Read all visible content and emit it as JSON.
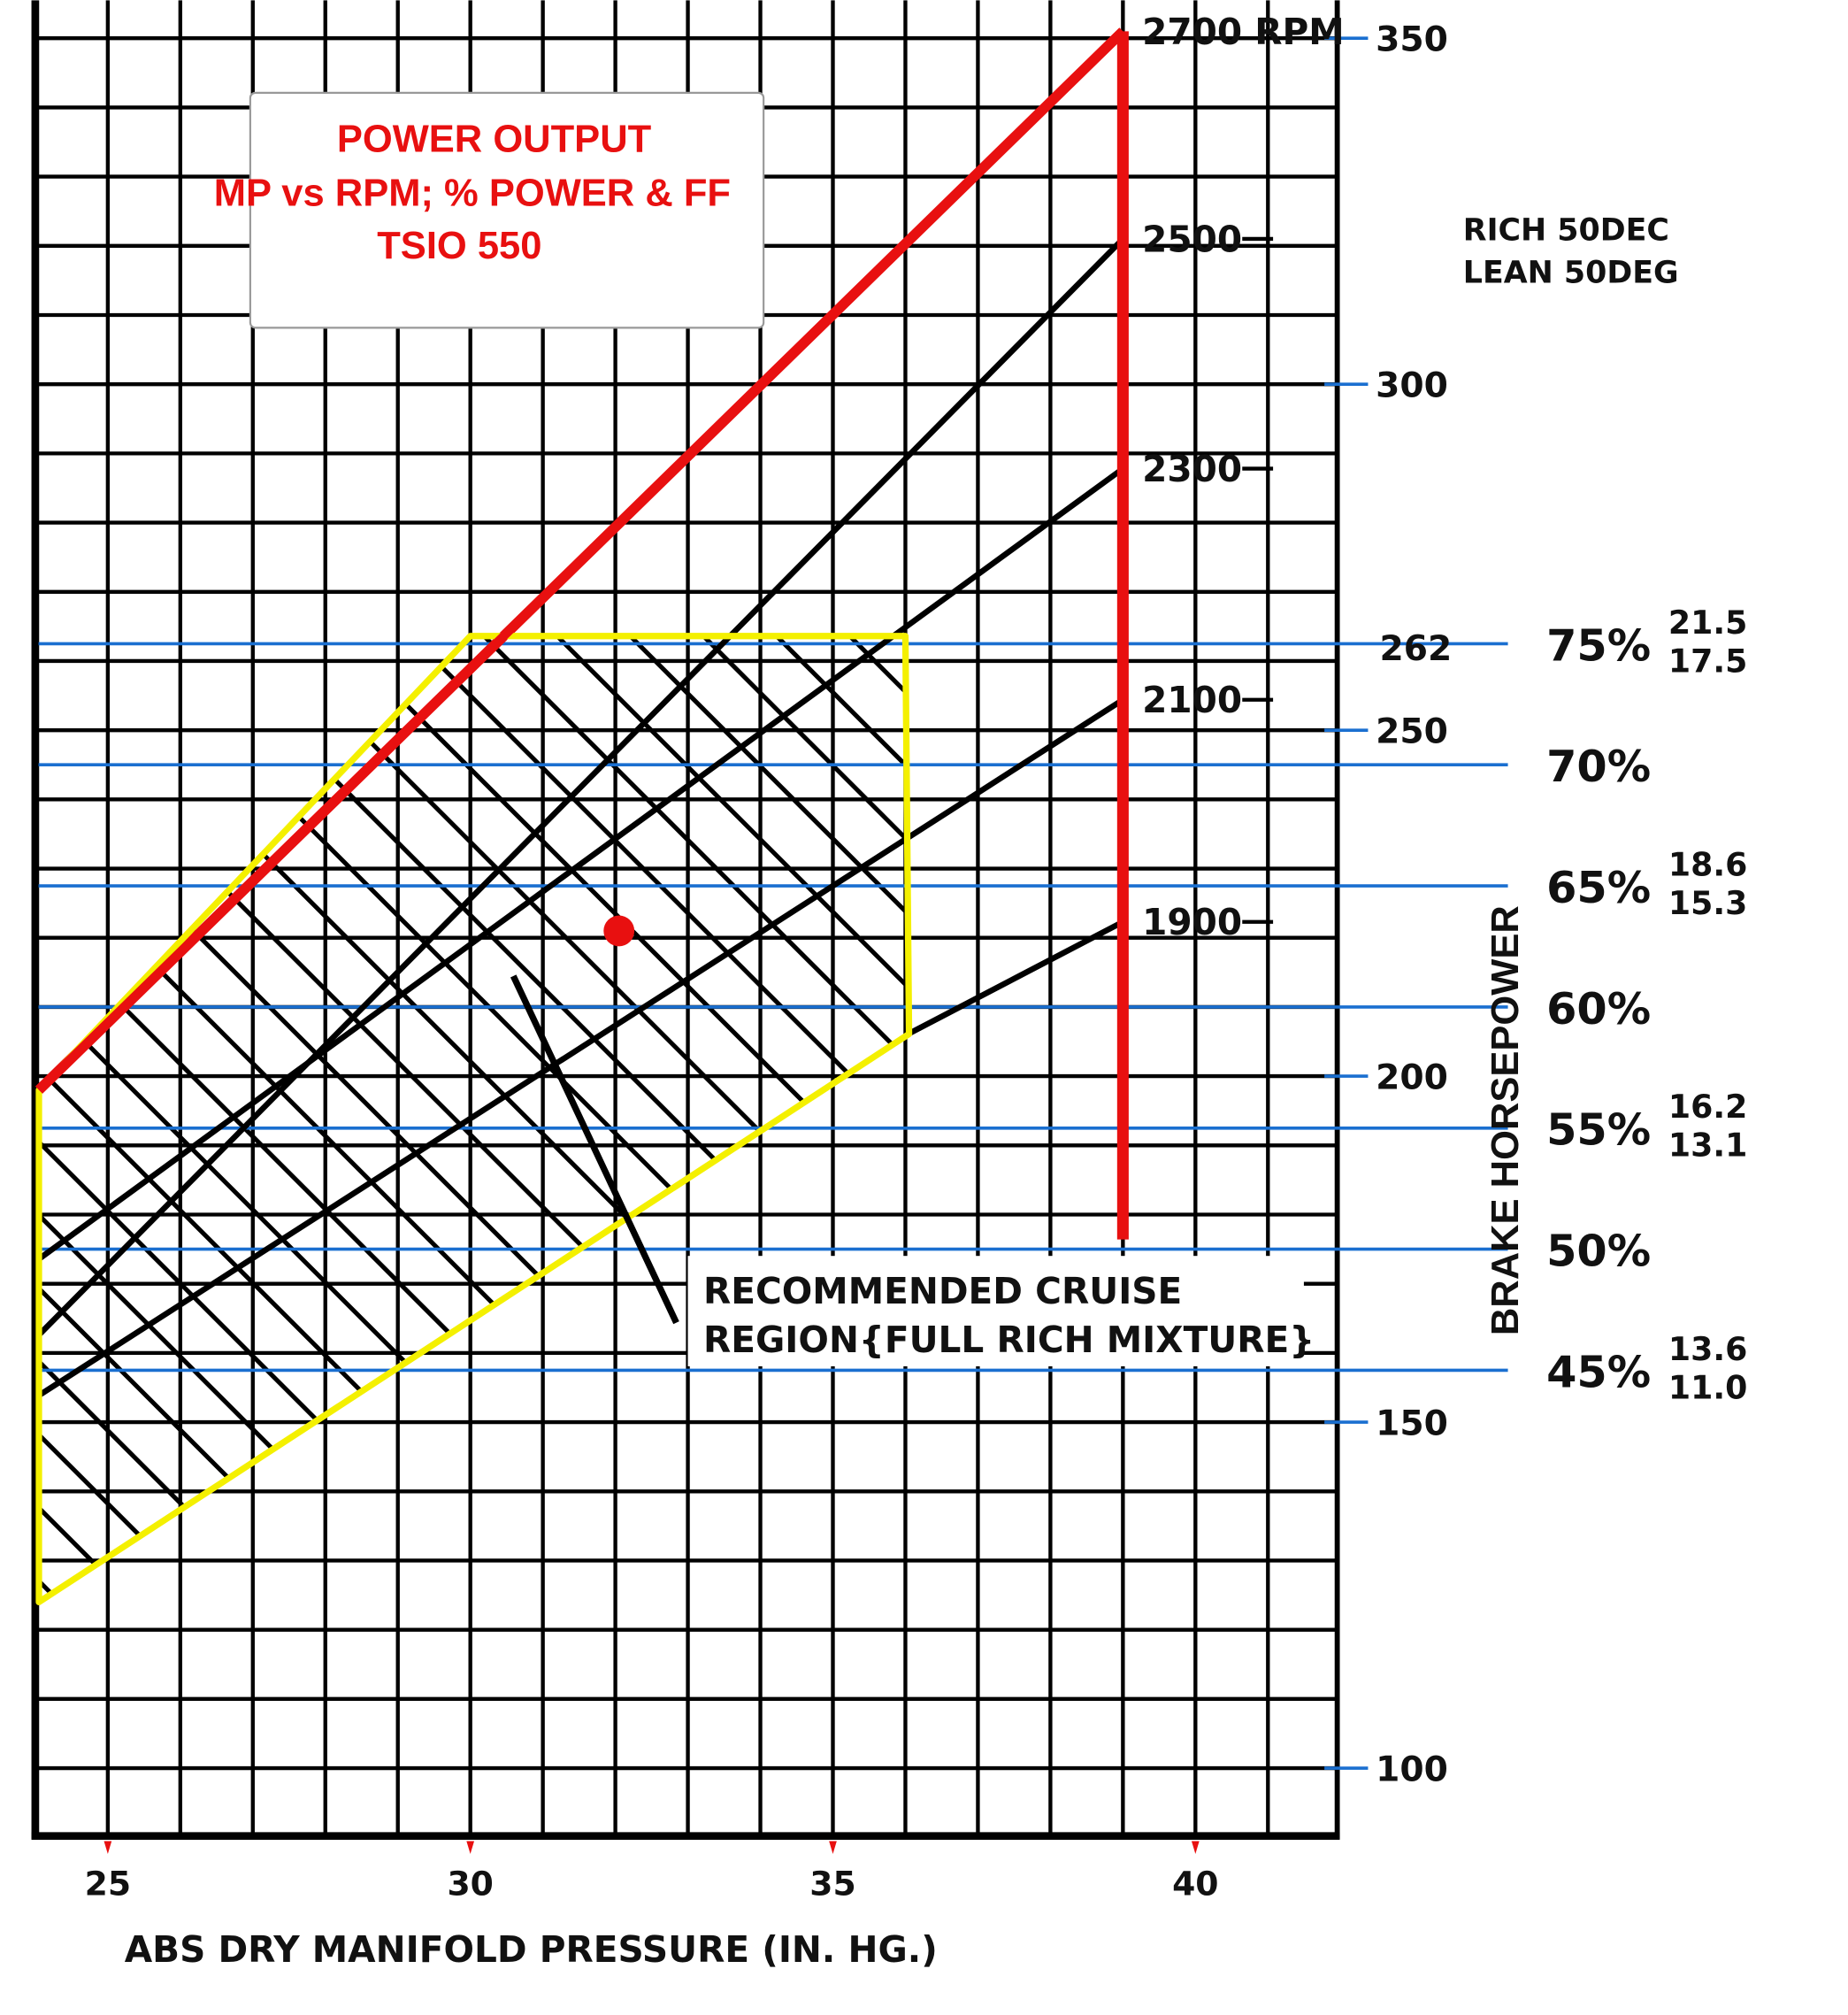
{
  "chart_data": {
    "type": "line",
    "title": [
      "POWER OUTPUT",
      "MP vs RPM;  % POWER & FF",
      "TSIO 550"
    ],
    "xlabel": "ABS   DRY MANIFOLD PRESSURE (IN. HG.)",
    "ylabel": "BRAKE HORSEPOWER",
    "xlim": [
      24,
      41.9
    ],
    "ylim": [
      90,
      355
    ],
    "grid": true,
    "x_ticks": [
      25,
      30,
      35,
      40
    ],
    "y_ticks": [
      350,
      300,
      262,
      250,
      200,
      150,
      100
    ],
    "series": [
      {
        "name": "2700 RPM",
        "label": "2700  RPM",
        "color": "#e81010",
        "points": [
          [
            24.05,
            198
          ],
          [
            39,
            351
          ]
        ]
      },
      {
        "name": "2500",
        "label": "2500",
        "color": "#000000",
        "points": [
          [
            24.04,
            162.5
          ],
          [
            39,
            321
          ]
        ]
      },
      {
        "name": "2300",
        "label": "2300",
        "color": "#000000",
        "points": [
          [
            24.04,
            173.5
          ],
          [
            39,
            287.8
          ]
        ]
      },
      {
        "name": "2100",
        "label": "2100",
        "color": "#000000",
        "points": [
          [
            24.04,
            153.8
          ],
          [
            39,
            254.4
          ]
        ]
      },
      {
        "name": "1900",
        "label": "1900",
        "color": "#000000",
        "points": [
          [
            36.04,
            206.1
          ],
          [
            39,
            222.3
          ]
        ]
      }
    ],
    "max_rpm_limit": {
      "mp": 39,
      "hp_range": [
        176.4,
        351
      ],
      "color": "#e81010"
    },
    "power_levels": [
      {
        "percent": "75%",
        "hp": 262.5,
        "ff_rich": "21.5",
        "ff_lean": "17.5"
      },
      {
        "percent": "70%",
        "hp": 245
      },
      {
        "percent": "65%",
        "hp": 227.5,
        "ff_rich": "18.6",
        "ff_lean": "15.3"
      },
      {
        "percent": "60%",
        "hp": 210
      },
      {
        "percent": "55%",
        "hp": 192.5,
        "ff_rich": "16.2",
        "ff_lean": "13.1"
      },
      {
        "percent": "50%",
        "hp": 175
      },
      {
        "percent": "45%",
        "hp": 157.5,
        "ff_rich": "13.6",
        "ff_lean": "11.0"
      }
    ],
    "ff_header": [
      "RICH 50DEC",
      "LEAN 50DEG"
    ],
    "cruise_region": {
      "label": [
        "RECOMMENDED CRUISE",
        "REGION{FULL RICH MIXTURE}"
      ],
      "polygon": [
        [
          30,
          263.6
        ],
        [
          36,
          263.6
        ],
        [
          36.05,
          206.1
        ],
        [
          24.05,
          124
        ],
        [
          24.05,
          198
        ]
      ],
      "color": "#f4f000"
    },
    "marker_point": {
      "mp": 32.05,
      "hp": 221,
      "color": "#e81010"
    },
    "colors": {
      "grid": "#000000",
      "power_lines": "#1a6fd0",
      "title": "#e81010"
    }
  }
}
